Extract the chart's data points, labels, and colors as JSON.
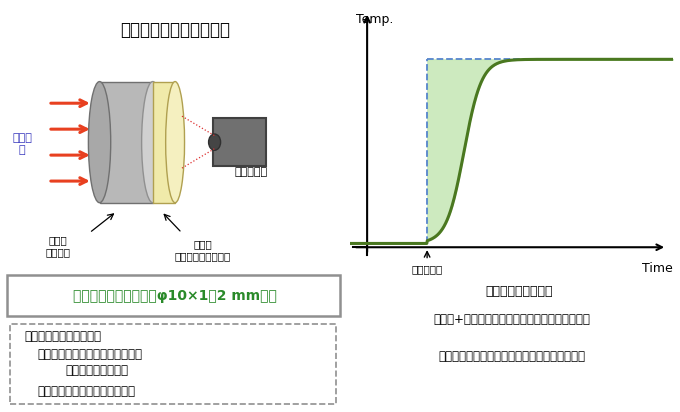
{
  "title": "フラッシュ法多層解析法",
  "title_bg": "#f2c8d8",
  "left_bg": "#fae0e8",
  "right_bg": "#ddeeff",
  "pulse_arrows_color": "#e84020",
  "pulse_text": "パルス\n光",
  "pulse_text_color": "#3030bb",
  "sensor_label": "放射温度計",
  "known_layer_label": "既知層\n（基材）",
  "unknown_layer_label": "未知層\n（コーティング膜）",
  "graph_curve_color": "#4a7820",
  "graph_fill_color": "#c8e8b8",
  "graph_dashed_color": "#5585cc",
  "graph_xlabel": "Time",
  "graph_ylabel": "Temp.",
  "laser_label": "レーザ照射",
  "graph_caption": "試料裏面の温度変化",
  "size_label": "試料サイズ（標準）：φ10×1～2 mm程度",
  "size_text_color": "#2a8a2a",
  "size_border_color": "#909090",
  "data_box_title": "＜解析に必要なデータ＞",
  "data_line1": "既知層：厚さ、密度、比熱容量、",
  "data_line2": "熱拡散率、熱伝導率",
  "data_line3": "未知層：厚さ、密度、比熱容量",
  "data_border_color": "#909090",
  "bottom_text_line1": "「基材+膜」試料裏面の温度変化曲線を計測し、",
  "bottom_text_line2": "多層解析により膜のみの熱伝導率を求めます。"
}
